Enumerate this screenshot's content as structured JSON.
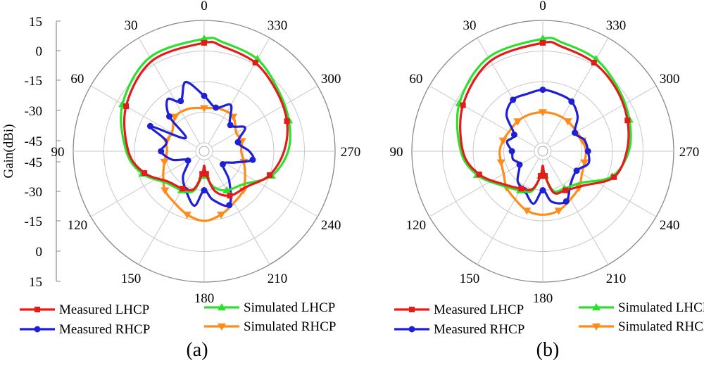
{
  "figure": {
    "gain_axis_label": "Gain(dBi)",
    "gain_ticks": [
      "15",
      "0",
      "-15",
      "-30",
      "-45",
      "-45",
      "-30",
      "-15",
      "0",
      "15"
    ],
    "angle_labels": [
      "0",
      "330",
      "300",
      "270",
      "240",
      "210",
      "180",
      "150",
      "120",
      "90",
      "60",
      "30"
    ]
  },
  "colors": {
    "measured_lhcp": "#e31b1b",
    "measured_rhcp": "#1f1fd6",
    "simulated_lhcp": "#2ee02e",
    "simulated_rhcp": "#ff8c1a",
    "grid": "#c8c8c8"
  },
  "chart_data": [
    {
      "type": "polar-line",
      "panel_label": "(a)",
      "r_unit": "dBi",
      "r_range": [
        -45,
        15
      ],
      "angle_direction": "clockwise-decreasing (0 top, 270 right, 90 left)",
      "legend": [
        "Measured LHCP",
        "Measured RHCP",
        "Simulated LHCP",
        "Simulated RHCP"
      ],
      "series": [
        {
          "name": "Measured LHCP",
          "marker": "square",
          "theta": [
            0,
            30,
            60,
            90,
            110,
            130,
            150,
            165,
            175,
            180,
            185,
            195,
            210,
            230,
            250,
            270,
            290,
            310,
            330,
            350
          ],
          "gain": [
            4,
            2,
            -5,
            -12,
            -18,
            -26,
            -28,
            -30,
            -38,
            -42,
            -38,
            -29,
            -24,
            -22,
            -15,
            -10,
            -6,
            -3,
            1,
            3
          ]
        },
        {
          "name": "Simulated LHCP",
          "marker": "triangle-up",
          "theta": [
            0,
            30,
            60,
            90,
            110,
            130,
            150,
            165,
            175,
            180,
            185,
            195,
            210,
            230,
            250,
            270,
            290,
            310,
            330,
            350
          ],
          "gain": [
            6,
            4,
            -3,
            -11,
            -17,
            -25,
            -27,
            -29,
            -37,
            -41,
            -37,
            -31,
            -27,
            -24,
            -14,
            -8,
            -5,
            -2,
            3,
            5
          ]
        },
        {
          "name": "Measured RHCP",
          "marker": "circle",
          "theta": [
            0,
            15,
            25,
            35,
            45,
            55,
            65,
            75,
            90,
            105,
            120,
            140,
            155,
            170,
            180,
            190,
            205,
            220,
            235,
            250,
            260,
            270,
            285,
            300,
            315,
            330,
            345
          ],
          "gain": [
            -22,
            -14,
            -22,
            -18,
            -25,
            -38,
            -20,
            -30,
            -28,
            -33,
            -40,
            -33,
            -28,
            -22,
            -30,
            -25,
            -20,
            -30,
            -38,
            -33,
            -25,
            -27,
            -32,
            -26,
            -31,
            -23,
            -27
          ]
        },
        {
          "name": "Simulated RHCP",
          "marker": "triangle-down",
          "theta": [
            0,
            20,
            40,
            60,
            75,
            90,
            105,
            120,
            135,
            150,
            165,
            180,
            195,
            210,
            225,
            240,
            255,
            270,
            285,
            300,
            320,
            340
          ],
          "gain": [
            -28,
            -27,
            -27,
            -31,
            -30,
            -31,
            -29,
            -26,
            -22,
            -20,
            -17,
            -15,
            -17,
            -20,
            -22,
            -26,
            -29,
            -31,
            -30,
            -31,
            -27,
            -27
          ]
        }
      ]
    },
    {
      "type": "polar-line",
      "panel_label": "(b)",
      "r_unit": "dBi",
      "r_range": [
        -45,
        15
      ],
      "angle_direction": "clockwise-decreasing (0 top, 270 right, 90 left)",
      "legend": [
        "Measured LHCP",
        "Measured RHCP",
        "Simulated LHCP",
        "Simulated RHCP"
      ],
      "series": [
        {
          "name": "Measured LHCP",
          "marker": "square",
          "theta": [
            0,
            30,
            60,
            90,
            110,
            130,
            150,
            165,
            175,
            180,
            185,
            195,
            210,
            230,
            250,
            270,
            290,
            310,
            330,
            350
          ],
          "gain": [
            4,
            2,
            -4,
            -10,
            -16,
            -24,
            -28,
            -30,
            -37,
            -42,
            -37,
            -28,
            -27,
            -23,
            -12,
            -8,
            -5,
            -2,
            1,
            3
          ]
        },
        {
          "name": "Simulated LHCP",
          "marker": "triangle-up",
          "theta": [
            0,
            30,
            60,
            90,
            110,
            130,
            150,
            165,
            175,
            180,
            185,
            195,
            210,
            230,
            250,
            270,
            290,
            310,
            330,
            350
          ],
          "gain": [
            6,
            4,
            -2,
            -9,
            -15,
            -23,
            -27,
            -29,
            -37,
            -41,
            -37,
            -29,
            -28,
            -25,
            -13,
            -7,
            -4,
            -1,
            3,
            5
          ]
        },
        {
          "name": "Measured RHCP",
          "marker": "circle",
          "theta": [
            0,
            15,
            30,
            45,
            60,
            75,
            90,
            105,
            120,
            140,
            155,
            170,
            180,
            190,
            205,
            220,
            240,
            255,
            270,
            285,
            300,
            315,
            330,
            345
          ],
          "gain": [
            -19,
            -20,
            -20,
            -24,
            -33,
            -31,
            -34,
            -34,
            -36,
            -30,
            -28,
            -23,
            -30,
            -24,
            -22,
            -28,
            -30,
            -26,
            -27,
            -28,
            -31,
            -25,
            -21,
            -20
          ]
        },
        {
          "name": "Simulated RHCP",
          "marker": "triangle-down",
          "theta": [
            0,
            20,
            40,
            60,
            75,
            90,
            105,
            120,
            135,
            150,
            165,
            180,
            195,
            210,
            225,
            240,
            255,
            270,
            285,
            300,
            320,
            340
          ],
          "gain": [
            -30,
            -30,
            -30,
            -30,
            -29,
            -28,
            -28,
            -27,
            -24,
            -22,
            -19,
            -18,
            -19,
            -22,
            -24,
            -27,
            -28,
            -28,
            -29,
            -30,
            -30,
            -30
          ]
        }
      ]
    }
  ]
}
